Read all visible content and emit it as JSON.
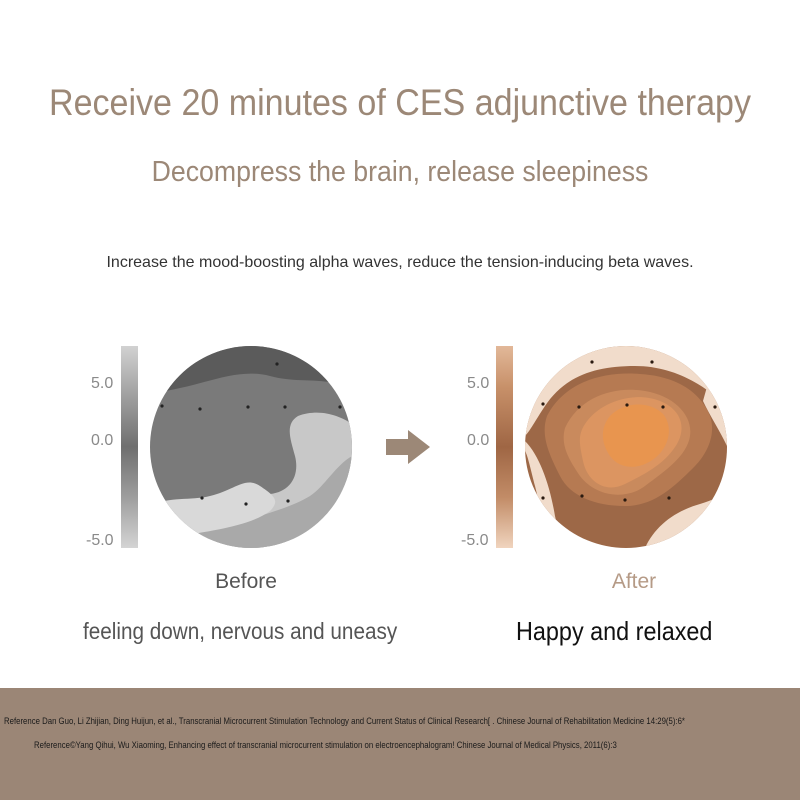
{
  "header": {
    "title": "Receive 20 minutes of CES adjunctive therapy",
    "subtitle": "Decompress the brain, release sleepiness"
  },
  "description": "Increase the mood-boosting alpha waves, reduce the tension-inducing beta waves.",
  "scale": {
    "max": "5.0",
    "mid": "0.0",
    "min": "-5.0"
  },
  "before": {
    "caption": "Before",
    "state": "feeling down, nervous and uneasy"
  },
  "after": {
    "caption": "After",
    "state": "Happy and relaxed"
  },
  "icons": {
    "transition": "right-arrow-icon"
  },
  "colors": {
    "accent": "#9c8877",
    "footer": "#9b8676",
    "after_peak": "#e8954f"
  },
  "references": [
    "Reference Dan Guo, Li Zhijian, Ding Huijun, et al., Transcranial Microcurrent Stimulation Technology and Current Status of Clinical Research[ . Chinese Journal of Rehabilitation Medicine 14:29(5):6*",
    "Reference©Yang Qihui, Wu Xiaoming, Enhancing effect of transcranial microcurrent stimulation on electroencephalogram! Chinese Journal of Medical Physics, 2011(6):3"
  ]
}
